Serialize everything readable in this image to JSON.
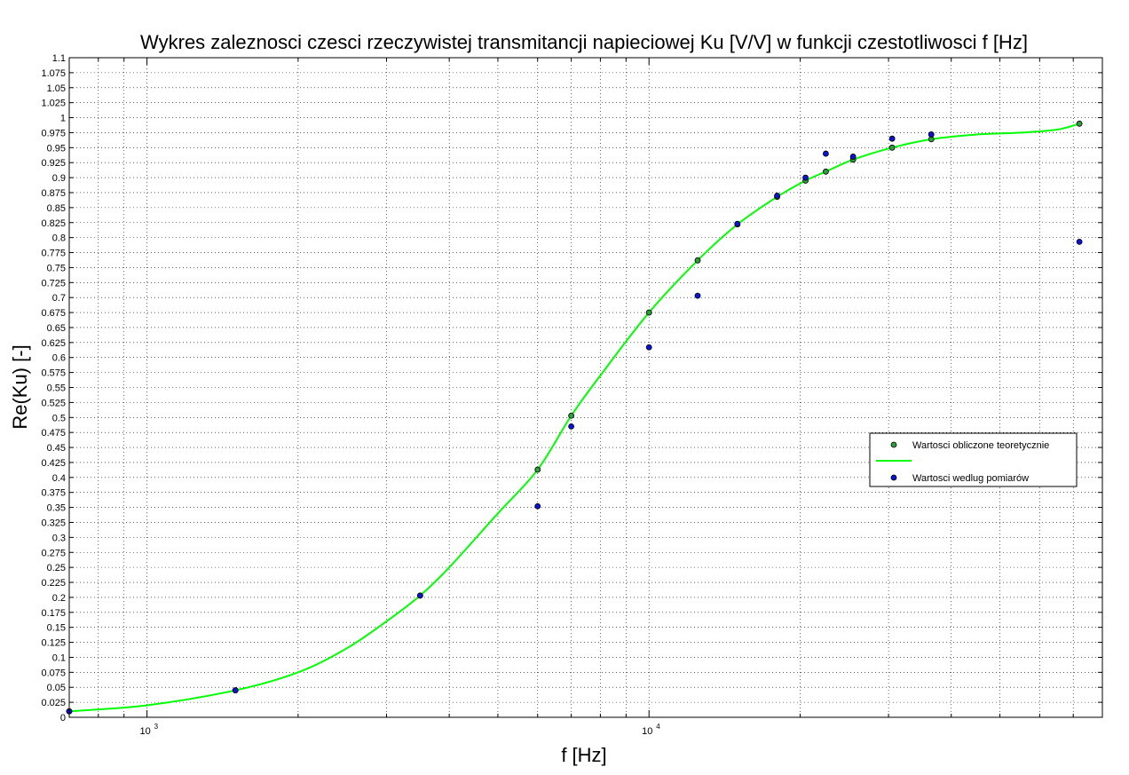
{
  "chart_data": {
    "type": "scatter",
    "title": "Wykres zaleznosci czesci rzeczywistej transmitancji napieciowej Ku [V/V] w funkcji czestotliwosci f [Hz]",
    "xlabel": "f [Hz]",
    "ylabel": "Re(Ku) [-]",
    "x_scale": "log",
    "xlim": [
      700,
      80000
    ],
    "ylim": [
      0,
      1.1
    ],
    "grid": true,
    "legend_position": "right",
    "x_ticks": [
      {
        "base": "10",
        "exp": "3",
        "value": 1000
      },
      {
        "base": "10",
        "exp": "4",
        "value": 10000
      }
    ],
    "y_ticks": [
      "0",
      "0.025",
      "0.05",
      "0.075",
      "0.1",
      "0.125",
      "0.15",
      "0.175",
      "0.2",
      "0.225",
      "0.25",
      "0.275",
      "0.3",
      "0.325",
      "0.35",
      "0.375",
      "0.4",
      "0.425",
      "0.45",
      "0.475",
      "0.5",
      "0.525",
      "0.55",
      "0.575",
      "0.6",
      "0.625",
      "0.65",
      "0.675",
      "0.7",
      "0.725",
      "0.75",
      "0.775",
      "0.8",
      "0.825",
      "0.85",
      "0.875",
      "0.9",
      "0.925",
      "0.95",
      "0.975",
      "1",
      "1.025",
      "1.05",
      "1.075",
      "1.1"
    ],
    "series": [
      {
        "name": "Wartosci obliczone teoretycznie",
        "kind": "markers",
        "marker_color": "#2e9e3c",
        "points": [
          {
            "x": 700,
            "y": 0.01
          },
          {
            "x": 1500,
            "y": 0.045
          },
          {
            "x": 3500,
            "y": 0.203
          },
          {
            "x": 6000,
            "y": 0.413
          },
          {
            "x": 7000,
            "y": 0.503
          },
          {
            "x": 10000,
            "y": 0.675
          },
          {
            "x": 12500,
            "y": 0.762
          },
          {
            "x": 15000,
            "y": 0.822
          },
          {
            "x": 18000,
            "y": 0.868
          },
          {
            "x": 20500,
            "y": 0.895
          },
          {
            "x": 22500,
            "y": 0.91
          },
          {
            "x": 25500,
            "y": 0.93
          },
          {
            "x": 30500,
            "y": 0.95
          },
          {
            "x": 36500,
            "y": 0.964
          },
          {
            "x": 72000,
            "y": 0.99
          }
        ]
      },
      {
        "kind": "line",
        "line_color": "#00ff00",
        "points": [
          {
            "x": 700,
            "y": 0.01
          },
          {
            "x": 1000,
            "y": 0.02
          },
          {
            "x": 1500,
            "y": 0.045
          },
          {
            "x": 2000,
            "y": 0.075
          },
          {
            "x": 2500,
            "y": 0.115
          },
          {
            "x": 3000,
            "y": 0.16
          },
          {
            "x": 3500,
            "y": 0.203
          },
          {
            "x": 4000,
            "y": 0.25
          },
          {
            "x": 5000,
            "y": 0.34
          },
          {
            "x": 6000,
            "y": 0.413
          },
          {
            "x": 7000,
            "y": 0.503
          },
          {
            "x": 8000,
            "y": 0.57
          },
          {
            "x": 10000,
            "y": 0.675
          },
          {
            "x": 12500,
            "y": 0.762
          },
          {
            "x": 15000,
            "y": 0.822
          },
          {
            "x": 18000,
            "y": 0.868
          },
          {
            "x": 20500,
            "y": 0.895
          },
          {
            "x": 22500,
            "y": 0.91
          },
          {
            "x": 25500,
            "y": 0.93
          },
          {
            "x": 30500,
            "y": 0.95
          },
          {
            "x": 36500,
            "y": 0.964
          },
          {
            "x": 45000,
            "y": 0.972
          },
          {
            "x": 55000,
            "y": 0.975
          },
          {
            "x": 65000,
            "y": 0.98
          },
          {
            "x": 72000,
            "y": 0.99
          }
        ]
      },
      {
        "name": "Wartosci wedlug pomiarów",
        "kind": "markers",
        "marker_color": "#0a14d6",
        "points": [
          {
            "x": 700,
            "y": 0.01
          },
          {
            "x": 1500,
            "y": 0.045
          },
          {
            "x": 3500,
            "y": 0.203
          },
          {
            "x": 6000,
            "y": 0.352
          },
          {
            "x": 7000,
            "y": 0.485
          },
          {
            "x": 10000,
            "y": 0.617
          },
          {
            "x": 12500,
            "y": 0.703
          },
          {
            "x": 15000,
            "y": 0.823
          },
          {
            "x": 18000,
            "y": 0.87
          },
          {
            "x": 20500,
            "y": 0.9
          },
          {
            "x": 22500,
            "y": 0.94
          },
          {
            "x": 25500,
            "y": 0.935
          },
          {
            "x": 30500,
            "y": 0.965
          },
          {
            "x": 36500,
            "y": 0.972
          },
          {
            "x": 72000,
            "y": 0.793
          }
        ]
      }
    ],
    "colors": {
      "background": "#ffffff",
      "axes": "#000000",
      "grid": "#000000"
    }
  }
}
